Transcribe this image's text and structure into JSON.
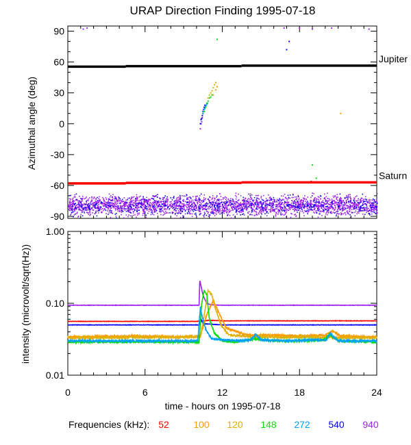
{
  "chart_data": [
    {
      "type": "scatter",
      "title": "URAP Direction Finding  1995-07-18",
      "xlabel": "",
      "ylabel": "Azimuthal angle (deg)",
      "xlim": [
        0,
        24
      ],
      "ylim": [
        -92,
        95
      ],
      "yticks": [
        -90,
        -60,
        -30,
        0,
        30,
        60,
        90
      ],
      "grid": false,
      "reference_lines": [
        {
          "name": "Jupiter",
          "y": [
            55.5,
            56.5
          ],
          "color": "#000000"
        },
        {
          "name": "Saturn",
          "y": [
            -58,
            -57
          ],
          "color": "#ff0000"
        }
      ],
      "series": [
        {
          "name": "940",
          "color": "#a020f0",
          "points": [
            [
              10.3,
              -5
            ],
            [
              10.35,
              0
            ],
            [
              10.4,
              2
            ],
            [
              10.45,
              6
            ],
            [
              10.5,
              10
            ],
            [
              10.6,
              12
            ],
            [
              1.2,
              92
            ],
            [
              1.5,
              93
            ],
            [
              16.8,
              93
            ],
            [
              18.0,
              93
            ],
            [
              19.0,
              92
            ],
            [
              20.5,
              93
            ],
            [
              23.4,
              92
            ]
          ],
          "band": {
            "x": [
              0,
              24
            ],
            "y": [
              -92,
              -65
            ],
            "description": "dense scatter across all hours"
          }
        },
        {
          "name": "540",
          "color": "#0000ff",
          "points": [
            [
              10.3,
              0
            ],
            [
              10.35,
              4
            ],
            [
              10.4,
              5
            ],
            [
              10.45,
              8
            ],
            [
              10.5,
              12
            ],
            [
              10.55,
              14
            ],
            [
              10.6,
              16
            ],
            [
              10.65,
              18
            ],
            [
              17.0,
              72
            ],
            [
              17.2,
              80
            ]
          ],
          "band": {
            "x": [
              0,
              24
            ],
            "y": [
              -92,
              -65
            ],
            "description": "interleaved with 940"
          }
        },
        {
          "name": "272",
          "color": "#00a0ff",
          "points": [
            [
              10.5,
              10
            ],
            [
              10.55,
              12
            ],
            [
              10.6,
              14
            ],
            [
              10.65,
              15
            ],
            [
              10.7,
              17
            ],
            [
              10.75,
              18
            ],
            [
              10.8,
              19
            ],
            [
              10.85,
              20
            ]
          ]
        },
        {
          "name": "148",
          "color": "#00e000",
          "points": [
            [
              10.6,
              12
            ],
            [
              10.7,
              16
            ],
            [
              10.8,
              20
            ],
            [
              10.9,
              22
            ],
            [
              11.0,
              25
            ],
            [
              11.1,
              26
            ],
            [
              11.2,
              28
            ],
            [
              19.0,
              -40
            ],
            [
              19.3,
              -53
            ],
            [
              11.6,
              82
            ]
          ]
        },
        {
          "name": "120",
          "color": "#e0b000",
          "points": [
            [
              10.9,
              25
            ],
            [
              11.0,
              28
            ],
            [
              11.1,
              30
            ],
            [
              11.2,
              32
            ],
            [
              11.3,
              35
            ],
            [
              11.4,
              38
            ],
            [
              11.5,
              40
            ]
          ]
        },
        {
          "name": "100",
          "color": "#ff9900",
          "points": [
            [
              11.3,
              28
            ],
            [
              11.5,
              33
            ],
            [
              11.6,
              36
            ],
            [
              21.2,
              10
            ]
          ]
        },
        {
          "name": "52",
          "color": "#ff0000",
          "points": [
            [
              18.9,
              -56
            ]
          ]
        }
      ]
    },
    {
      "type": "line",
      "xlabel": "time - hours on 1995-07-18",
      "ylabel": "intensity (microvolt/sqrt(Hz))",
      "xlim": [
        0,
        24
      ],
      "ylim": [
        0.01,
        1.0
      ],
      "yscale": "log",
      "yticks": [
        0.01,
        0.1,
        1.0
      ],
      "ytick_labels": [
        "0.01",
        "0.10",
        "1.00"
      ],
      "xticks": [
        0,
        6,
        12,
        18,
        24
      ],
      "xtick_labels": [
        "0",
        "6",
        "12",
        "18",
        "24"
      ],
      "grid": false,
      "series": [
        {
          "name": "940",
          "color": "#a020f0",
          "x": [
            0,
            10.2,
            10.25,
            10.5,
            10.8,
            11.2,
            12,
            24
          ],
          "y": [
            0.094,
            0.094,
            0.21,
            0.13,
            0.099,
            0.095,
            0.094,
            0.094
          ]
        },
        {
          "name": "52",
          "color": "#ff0000",
          "x": [
            0,
            10,
            11,
            12,
            24
          ],
          "y": [
            0.056,
            0.056,
            0.058,
            0.057,
            0.057
          ]
        },
        {
          "name": "540",
          "color": "#0000ff",
          "x": [
            0,
            10.2,
            10.35,
            10.5,
            12,
            24
          ],
          "y": [
            0.05,
            0.05,
            0.06,
            0.052,
            0.05,
            0.05
          ]
        },
        {
          "name": "100",
          "color": "#ff9900",
          "x": [
            0,
            5,
            9,
            10.3,
            10.8,
            11.3,
            11.8,
            12.3,
            14,
            16,
            18,
            20,
            20.6,
            21.2,
            24
          ],
          "y": [
            0.034,
            0.035,
            0.034,
            0.035,
            0.07,
            0.11,
            0.07,
            0.045,
            0.036,
            0.036,
            0.035,
            0.036,
            0.041,
            0.035,
            0.034
          ]
        },
        {
          "name": "120",
          "color": "#e0b000",
          "x": [
            0,
            10.3,
            10.6,
            10.9,
            11.2,
            11.5,
            11.9,
            12.5,
            15,
            24
          ],
          "y": [
            0.033,
            0.034,
            0.07,
            0.15,
            0.13,
            0.08,
            0.05,
            0.036,
            0.034,
            0.033
          ]
        },
        {
          "name": "148",
          "color": "#00e000",
          "x": [
            0,
            10.2,
            10.4,
            10.6,
            10.8,
            11.0,
            11.4,
            12,
            13,
            14.5,
            16,
            18,
            20,
            20.3,
            21,
            24
          ],
          "y": [
            0.029,
            0.029,
            0.1,
            0.15,
            0.13,
            0.06,
            0.038,
            0.03,
            0.029,
            0.032,
            0.03,
            0.03,
            0.031,
            0.037,
            0.03,
            0.029
          ]
        },
        {
          "name": "272",
          "color": "#00a0ff",
          "x": [
            0,
            10.1,
            10.3,
            10.4,
            10.6,
            10.8,
            11.2,
            12,
            13.3,
            14.2,
            14.6,
            15,
            17,
            19,
            20.1,
            20.4,
            21,
            24
          ],
          "y": [
            0.03,
            0.03,
            0.09,
            0.07,
            0.05,
            0.04,
            0.032,
            0.031,
            0.03,
            0.031,
            0.037,
            0.031,
            0.03,
            0.031,
            0.031,
            0.038,
            0.03,
            0.03
          ]
        }
      ]
    }
  ],
  "legend": {
    "label": "Frequencies (kHz):",
    "entries": [
      {
        "text": "52",
        "color": "#ff0000"
      },
      {
        "text": "100",
        "color": "#ff9900"
      },
      {
        "text": "120",
        "color": "#e0b000"
      },
      {
        "text": "148",
        "color": "#00e000"
      },
      {
        "text": "272",
        "color": "#00a0ff"
      },
      {
        "text": "540",
        "color": "#0000ff"
      },
      {
        "text": "940",
        "color": "#a020f0"
      }
    ]
  }
}
